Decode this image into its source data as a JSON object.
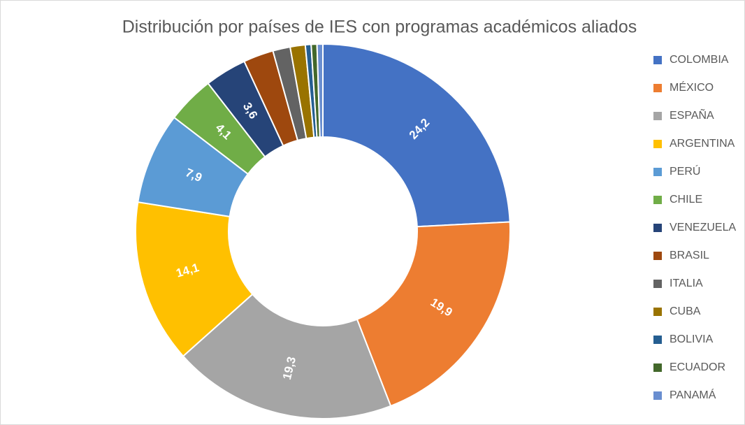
{
  "chart_data": {
    "type": "donut",
    "title": "Distribución por países de IES con programas académicos aliados",
    "categories": [
      "COLOMBIA",
      "MÉXICO",
      "ESPAÑA",
      "ARGENTINA",
      "PERÚ",
      "CHILE",
      "VENEZUELA",
      "BRASIL",
      "ITALIA",
      "CUBA",
      "BOLIVIA",
      "ECUADOR",
      "PANAMÁ"
    ],
    "values": [
      24.2,
      19.9,
      19.3,
      14.1,
      7.9,
      4.1,
      3.6,
      2.6,
      1.5,
      1.3,
      0.5,
      0.5,
      0.5
    ],
    "value_labels": [
      "24,2",
      "19,9",
      "19,3",
      "14,1",
      "7,9",
      "4,1",
      "3,6",
      null,
      null,
      null,
      null,
      null,
      null
    ],
    "colors": [
      "#4472c4",
      "#ed7d31",
      "#a5a5a5",
      "#ffc000",
      "#5b9bd5",
      "#70ad47",
      "#264478",
      "#9e480e",
      "#636363",
      "#997300",
      "#255e91",
      "#43682b",
      "#698ed0"
    ],
    "legend": "right"
  }
}
